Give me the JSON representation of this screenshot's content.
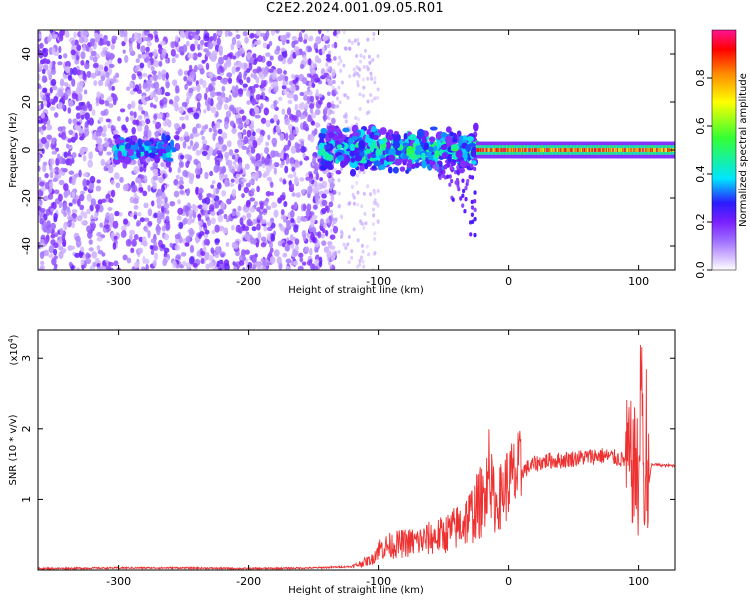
{
  "title": "C2E2.2024.001.09.05.R01",
  "chart_data": [
    {
      "type": "heatmap",
      "xlabel": "Height of straight line (km)",
      "ylabel": "Frequency (Hz)",
      "xlim": [
        -362,
        128
      ],
      "ylim": [
        -50,
        50
      ],
      "xticks": [
        -300,
        -200,
        -100,
        0,
        100
      ],
      "yticks": [
        -40,
        -20,
        0,
        20,
        40
      ],
      "colorbar": {
        "label": "Normalized spectral amplitude",
        "range": [
          0.0,
          1.0
        ],
        "ticks": [
          0.0,
          0.2,
          0.4,
          0.6,
          0.8
        ],
        "colormap_stops": [
          "#ffffff",
          "#c9a9ff",
          "#8a2be2",
          "#3a1cff",
          "#00e5ff",
          "#3cff3c",
          "#ffff00",
          "#ff8c00",
          "#ff0000",
          "#ff1493"
        ]
      },
      "regions": [
        {
          "x_range": [
            -362,
            -133
          ],
          "freq_range": [
            -50,
            50
          ],
          "amplitude": 0.12,
          "description": "noise"
        },
        {
          "x_range": [
            -302,
            -258
          ],
          "freq_range": [
            -6,
            6
          ],
          "amplitude": 0.4
        },
        {
          "x_range": [
            -145,
            -25
          ],
          "freq_range": [
            -10,
            10
          ],
          "amplitude": 0.45
        },
        {
          "x_range": [
            -25,
            128
          ],
          "freq_range": [
            -2,
            2
          ],
          "amplitude": 0.85
        }
      ]
    },
    {
      "type": "line",
      "xlabel": "Height of straight line (km)",
      "ylabel": "SNR (10 * v/v)",
      "y_multiplier": "(x10^4)",
      "xlim": [
        -362,
        128
      ],
      "ylim": [
        0,
        3.4
      ],
      "xticks": [
        -300,
        -200,
        -100,
        0,
        100
      ],
      "yticks": [
        1,
        2,
        3
      ],
      "series": [
        {
          "color": "#ee3030",
          "x": [
            -362,
            -300,
            -250,
            -200,
            -150,
            -120,
            -105,
            -100,
            -90,
            -80,
            -70,
            -60,
            -50,
            -40,
            -30,
            -20,
            -15,
            -10,
            -5,
            0,
            10,
            20,
            30,
            40,
            50,
            60,
            70,
            80,
            90,
            95,
            100,
            102,
            105,
            110,
            120,
            128
          ],
          "y": [
            0.02,
            0.03,
            0.03,
            0.02,
            0.03,
            0.05,
            0.15,
            0.3,
            0.35,
            0.38,
            0.4,
            0.45,
            0.5,
            0.6,
            0.75,
            1.0,
            1.3,
            0.9,
            1.1,
            1.25,
            1.4,
            1.5,
            1.55,
            1.55,
            1.58,
            1.6,
            1.62,
            1.6,
            1.55,
            1.5,
            1.3,
            2.8,
            0.8,
            1.5,
            1.48,
            1.48
          ]
        }
      ]
    }
  ],
  "exponent": {
    "base": "(x10",
    "power": "4",
    "close": ")"
  }
}
